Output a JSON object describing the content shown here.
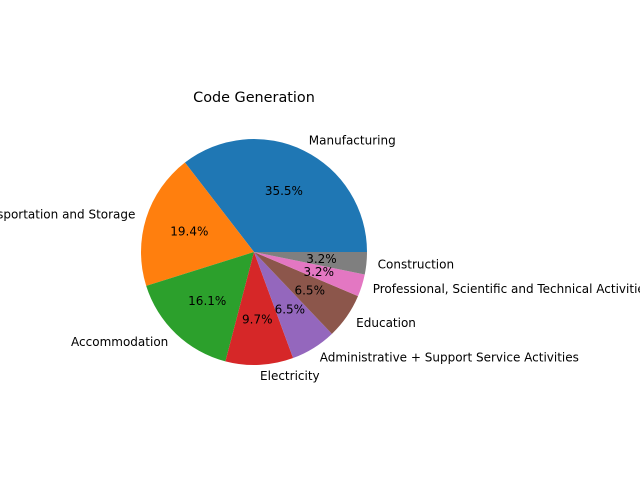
{
  "chart_data": {
    "type": "pie",
    "title": "Code Generation",
    "labels": [
      "Manufacturing",
      "Transportation and Storage",
      "Accommodation",
      "Electricity",
      "Administrative + Support Service Activities",
      "Education",
      "Professional, Scientific and Technical Activities",
      "Construction"
    ],
    "values": [
      35.5,
      19.4,
      16.1,
      9.7,
      6.5,
      6.5,
      3.2,
      3.2
    ],
    "pct_labels": [
      "35.5%",
      "19.4%",
      "16.1%",
      "9.7%",
      "6.5%",
      "6.5%",
      "3.2%",
      "3.2%"
    ],
    "colors": [
      "#1f77b4",
      "#ff7f0e",
      "#2ca02c",
      "#d62728",
      "#9467bd",
      "#8c564b",
      "#e377c2",
      "#7f7f7f"
    ],
    "start_angle_deg": 0,
    "direction": "counterclockwise",
    "legend": "none"
  }
}
